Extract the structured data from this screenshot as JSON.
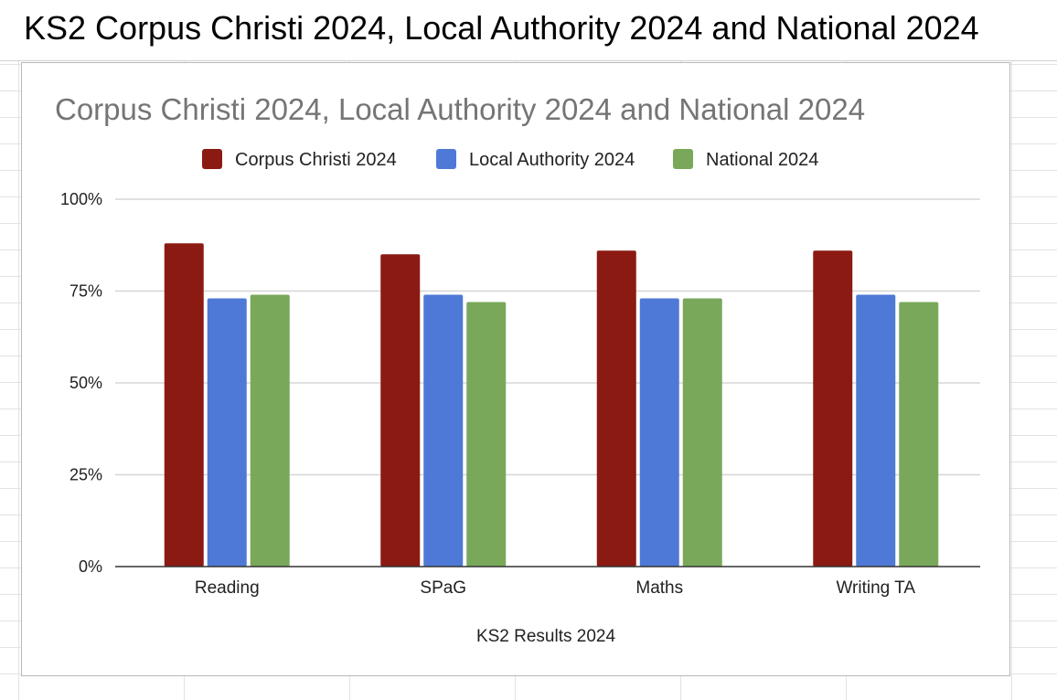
{
  "sheet": {
    "header_title": "KS2 Corpus Christi 2024, Local Authority 2024 and National 2024"
  },
  "chart_data": {
    "type": "bar",
    "title": "Corpus Christi 2024, Local Authority 2024 and National 2024",
    "xlabel": "KS2 Results 2024",
    "ylabel": "",
    "categories": [
      "Reading",
      "SPaG",
      "Maths",
      "Writing TA"
    ],
    "series": [
      {
        "name": "Corpus Christi 2024",
        "color": "#8b1a12",
        "values": [
          0.88,
          0.85,
          0.86,
          0.86
        ]
      },
      {
        "name": "Local Authority 2024",
        "color": "#4e79d6",
        "values": [
          0.73,
          0.74,
          0.73,
          0.74
        ]
      },
      {
        "name": "National 2024",
        "color": "#79a85a",
        "values": [
          0.74,
          0.72,
          0.73,
          0.72
        ]
      }
    ],
    "ylim": [
      0,
      1
    ],
    "yticks": [
      0,
      0.25,
      0.5,
      0.75,
      1
    ],
    "ytick_labels": [
      "0%",
      "25%",
      "50%",
      "75%",
      "100%"
    ],
    "grid": true,
    "legend_position": "top"
  }
}
